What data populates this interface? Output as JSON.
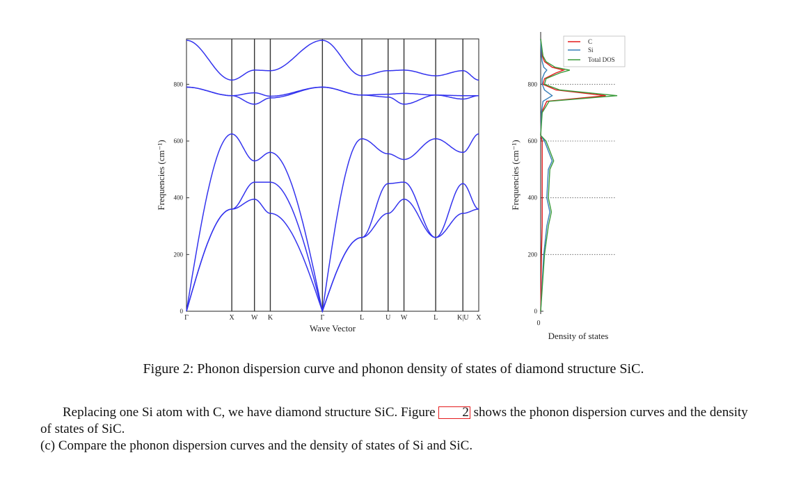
{
  "figure": {
    "dispersion": {
      "ylabel": "Frequencies (cm⁻¹)",
      "xlabel": "Wave Vector",
      "ylim": [
        0,
        960
      ],
      "yticks": [
        "0",
        "200",
        "400",
        "600",
        "800"
      ],
      "kpoints": [
        {
          "label": "Γ",
          "x": 0
        },
        {
          "label": "X",
          "x": 1.0
        },
        {
          "label": "W",
          "x": 1.5
        },
        {
          "label": "K",
          "x": 1.85
        },
        {
          "label": "Γ",
          "x": 3.0
        },
        {
          "label": "L",
          "x": 3.87
        },
        {
          "label": "U",
          "x": 4.45
        },
        {
          "label": "W",
          "x": 4.8
        },
        {
          "label": "L",
          "x": 5.5
        },
        {
          "label": "K|U",
          "x": 6.1
        },
        {
          "label": "X",
          "x": 6.45
        }
      ],
      "line_color": "#3333ee"
    },
    "dos": {
      "ylabel": "Frequencies (cm⁻¹)",
      "xlabel": "Density of states",
      "xtick": "0",
      "yticks": [
        "0",
        "200",
        "400",
        "600",
        "800"
      ],
      "legend": [
        {
          "name": "C",
          "color": "#e41a1c"
        },
        {
          "name": "Si",
          "color": "#377eb8"
        },
        {
          "name": "Total DOS",
          "color": "#3a9a3a"
        }
      ],
      "dotted_levels": [
        200,
        400,
        600,
        800
      ]
    }
  },
  "chart_data": [
    {
      "type": "line",
      "title": "",
      "xlabel": "Wave Vector",
      "ylabel": "Frequencies (cm⁻¹)",
      "ylim": [
        0,
        960
      ],
      "x_ticks": [
        "Γ",
        "X",
        "W",
        "K",
        "Γ",
        "L",
        "U",
        "W",
        "L",
        "K|U",
        "X"
      ],
      "grid": "vertical lines at high-symmetry points",
      "series": [
        {
          "x": [
            0,
            1,
            1.5,
            1.85,
            3,
            3.87,
            4.45,
            4.8,
            5.5,
            6.1,
            6.45
          ],
          "y": [
            0,
            360,
            395,
            345,
            0,
            260,
            345,
            395,
            260,
            345,
            360
          ]
        },
        {
          "x": [
            0,
            1,
            1.5,
            1.85,
            3,
            3.87,
            4.45,
            4.8,
            5.5,
            6.1,
            6.45
          ],
          "y": [
            0,
            360,
            455,
            455,
            0,
            260,
            450,
            455,
            260,
            450,
            360
          ]
        },
        {
          "x": [
            0,
            1,
            1.5,
            1.85,
            3,
            3.87,
            4.45,
            4.8,
            5.5,
            6.1,
            6.45
          ],
          "y": [
            0,
            625,
            530,
            560,
            0,
            608,
            555,
            535,
            608,
            560,
            625
          ]
        },
        {
          "x": [
            0,
            1,
            1.5,
            1.85,
            3,
            3.87,
            4.45,
            4.8,
            5.5,
            6.1,
            6.45
          ],
          "y": [
            790,
            760,
            730,
            752,
            790,
            762,
            755,
            730,
            762,
            748,
            760
          ]
        },
        {
          "x": [
            0,
            1,
            1.5,
            1.85,
            3,
            3.87,
            4.45,
            4.8,
            5.5,
            6.1,
            6.45
          ],
          "y": [
            790,
            760,
            770,
            758,
            790,
            762,
            765,
            768,
            762,
            760,
            760
          ]
        },
        {
          "x": [
            0,
            1,
            1.5,
            1.85,
            3,
            3.87,
            4.45,
            4.8,
            5.5,
            6.1,
            6.45
          ],
          "y": [
            955,
            815,
            850,
            848,
            955,
            830,
            848,
            850,
            830,
            848,
            815
          ]
        }
      ]
    },
    {
      "type": "line",
      "title": "",
      "xlabel": "Density of states",
      "ylabel": "Frequencies (cm⁻¹)",
      "ylim": [
        0,
        960
      ],
      "legend_position": "top-right",
      "series": [
        {
          "name": "C",
          "freq": [
            0,
            200,
            300,
            350,
            400,
            500,
            600,
            620,
            700,
            740,
            760,
            780,
            800,
            820,
            840,
            850,
            860,
            880,
            900,
            960
          ],
          "dos": [
            0,
            0.01,
            0.02,
            0.02,
            0.02,
            0.02,
            0.02,
            0,
            0.01,
            0.08,
            0.85,
            0.2,
            0.03,
            0.05,
            0.2,
            0.3,
            0.15,
            0.05,
            0.02,
            0
          ]
        },
        {
          "name": "Si",
          "freq": [
            0,
            200,
            300,
            350,
            400,
            500,
            530,
            600,
            620,
            700,
            740,
            760,
            780,
            800,
            820,
            840,
            850,
            860,
            880,
            900,
            960
          ],
          "dos": [
            0,
            0.04,
            0.08,
            0.12,
            0.08,
            0.1,
            0.15,
            0.05,
            0,
            0.01,
            0.03,
            0.15,
            0.05,
            0.02,
            0.02,
            0.05,
            0.08,
            0.04,
            0.02,
            0.01,
            0
          ]
        },
        {
          "name": "Total DOS",
          "freq": [
            0,
            200,
            300,
            350,
            400,
            500,
            530,
            600,
            620,
            700,
            740,
            760,
            780,
            800,
            820,
            840,
            850,
            860,
            880,
            900,
            960
          ],
          "dos": [
            0,
            0.05,
            0.1,
            0.14,
            0.1,
            0.12,
            0.17,
            0.07,
            0,
            0.02,
            0.11,
            1.0,
            0.25,
            0.05,
            0.07,
            0.25,
            0.38,
            0.19,
            0.07,
            0.03,
            0
          ]
        }
      ]
    }
  ],
  "caption": "Figure 2: Phonon dispersion curve and phonon density of states of diamond structure SiC.",
  "paragraph1": {
    "before": "Replacing one Si atom with C, we have diamond structure SiC. Figure ",
    "ref": "2",
    "after": " shows the phonon dispersion curves and the density of states of SiC."
  },
  "paragraph2": "(c) Compare the phonon dispersion curves and the density of states of Si and SiC."
}
